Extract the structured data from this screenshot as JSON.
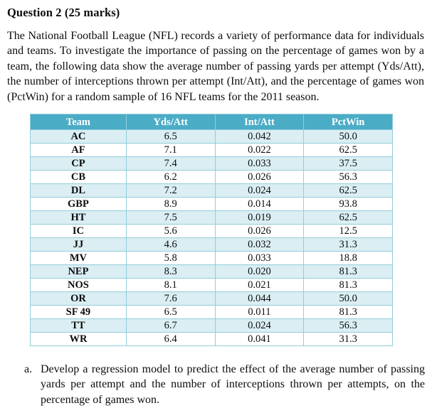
{
  "document": {
    "heading": "Question 2 (25 marks)",
    "intro": "The National Football League (NFL) records a variety of performance data for individuals and teams. To investigate the importance of passing on the percentage of games won by a team, the following data show the average number of passing yards per attempt (Yds/Att), the number of interceptions thrown per attempt (Int/Att), and the percentage of games won (PctWin) for a random sample of 16 NFL teams for the 2011 season.",
    "parts": [
      {
        "label": "a.",
        "text": "Develop a regression model to predict the effect of the average number of passing yards per attempt and the number of interceptions thrown per attempts, on the percentage of games won."
      }
    ]
  },
  "table": {
    "columns": [
      "Team",
      "Yds/Att",
      "Int/Att",
      "PctWin"
    ],
    "rows": [
      [
        "AC",
        "6.5",
        "0.042",
        "50.0"
      ],
      [
        "AF",
        "7.1",
        "0.022",
        "62.5"
      ],
      [
        "CP",
        "7.4",
        "0.033",
        "37.5"
      ],
      [
        "CB",
        "6.2",
        "0.026",
        "56.3"
      ],
      [
        "DL",
        "7.2",
        "0.024",
        "62.5"
      ],
      [
        "GBP",
        "8.9",
        "0.014",
        "93.8"
      ],
      [
        "HT",
        "7.5",
        "0.019",
        "62.5"
      ],
      [
        "IC",
        "5.6",
        "0.026",
        "12.5"
      ],
      [
        "JJ",
        "4.6",
        "0.032",
        "31.3"
      ],
      [
        "MV",
        "5.8",
        "0.033",
        "18.8"
      ],
      [
        "NEP",
        "8.3",
        "0.020",
        "81.3"
      ],
      [
        "NOS",
        "8.1",
        "0.021",
        "81.3"
      ],
      [
        "OR",
        "7.6",
        "0.044",
        "50.0"
      ],
      [
        "SF 49",
        "6.5",
        "0.011",
        "81.3"
      ],
      [
        "TT",
        "6.7",
        "0.024",
        "56.3"
      ],
      [
        "WR",
        "6.4",
        "0.041",
        "31.3"
      ]
    ],
    "colors": {
      "header_bg": "#4BACC6",
      "header_text": "#FFFFFF",
      "band_bg": "#DAEEF3",
      "border": "#92CDDC"
    }
  }
}
